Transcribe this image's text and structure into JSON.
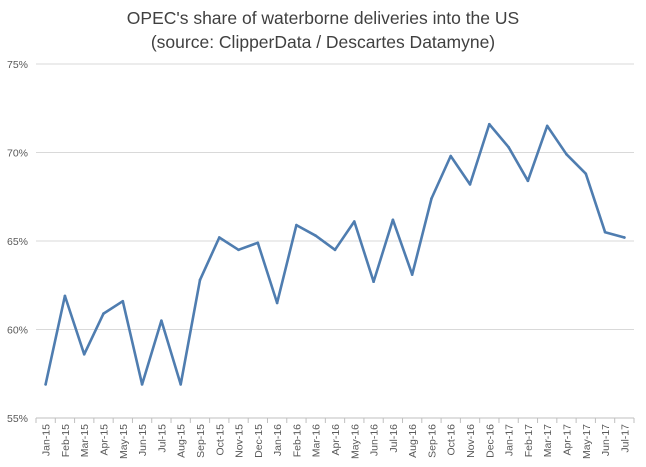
{
  "chart_data": {
    "type": "line",
    "title_line1": "OPEC's share of waterborne deliveries into the US",
    "title_line2": "(source: ClipperData / Descartes Datamyne)",
    "xlabel": "",
    "ylabel": "",
    "ylim": [
      55,
      75
    ],
    "y_ticks": [
      55,
      60,
      65,
      70,
      75
    ],
    "y_tick_labels": [
      "55%",
      "60%",
      "65%",
      "70%",
      "75%"
    ],
    "grid": "horizontal",
    "line_color": "#4f7db0",
    "categories": [
      "Jan-15",
      "Feb-15",
      "Mar-15",
      "Apr-15",
      "May-15",
      "Jun-15",
      "Jul-15",
      "Aug-15",
      "Sep-15",
      "Oct-15",
      "Nov-15",
      "Dec-15",
      "Jan-16",
      "Feb-16",
      "Mar-16",
      "Apr-16",
      "May-16",
      "Jun-16",
      "Jul-16",
      "Aug-16",
      "Sep-16",
      "Oct-16",
      "Nov-16",
      "Dec-16",
      "Jan-17",
      "Feb-17",
      "Mar-17",
      "Apr-17",
      "May-17",
      "Jun-17",
      "Jul-17"
    ],
    "series": [
      {
        "values": [
          56.9,
          61.9,
          58.6,
          60.9,
          61.6,
          56.9,
          60.5,
          56.9,
          62.8,
          65.2,
          64.5,
          64.9,
          61.5,
          65.9,
          65.3,
          64.5,
          66.1,
          62.7,
          66.2,
          63.1,
          67.4,
          69.8,
          68.2,
          71.6,
          70.3,
          68.4,
          71.5,
          69.9,
          68.8,
          65.5,
          65.2
        ]
      }
    ]
  }
}
